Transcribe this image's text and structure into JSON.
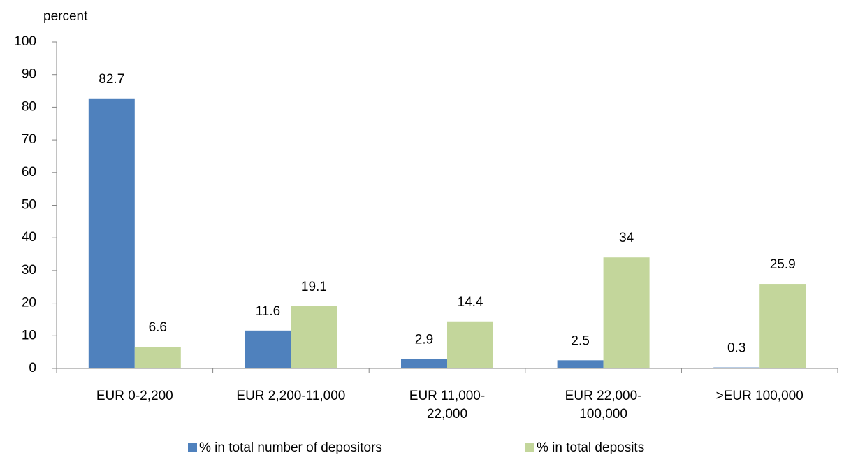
{
  "chart_data": {
    "type": "bar",
    "y_label": "percent",
    "categories": [
      "EUR 0-2,200",
      "EUR 2,200-11,000",
      "EUR 11,000-22,000",
      "EUR 22,000-100,000",
      ">EUR 100,000"
    ],
    "series": [
      {
        "name": "% in total number of depositors",
        "color": "#4f81bd",
        "values": [
          82.7,
          11.6,
          2.9,
          2.5,
          0.3
        ]
      },
      {
        "name": "% in total deposits",
        "color": "#c3d69b",
        "values": [
          6.6,
          19.1,
          14.4,
          34,
          25.9
        ]
      }
    ],
    "ylim": [
      0,
      100
    ],
    "yticks": [
      0,
      10,
      20,
      30,
      40,
      50,
      60,
      70,
      80,
      90,
      100
    ],
    "grid": false,
    "legend": "bottom"
  }
}
